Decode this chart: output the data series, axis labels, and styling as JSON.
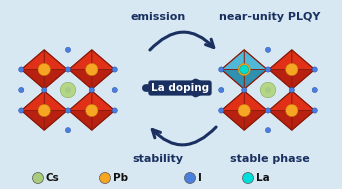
{
  "bg_color": "#d8e8f2",
  "title_emission": "emission",
  "title_plqy": "near-unity PLQY",
  "label_ladoping": "La doping",
  "label_stability": "stability",
  "label_stable": "stable phase",
  "legend_items": [
    {
      "label": "Cs",
      "color": "#a8cc7a"
    },
    {
      "label": "Pb",
      "color": "#f5a623"
    },
    {
      "label": "I",
      "color": "#4a7fdd"
    },
    {
      "label": "La",
      "color": "#00dddd"
    }
  ],
  "arrow_color": "#1a3060",
  "text_color": "#1a3060",
  "perovskite_red": "#e03018",
  "perovskite_red_dark": "#b82010",
  "perovskite_blue": "#50b8d8",
  "perovskite_blue_dark": "#3090b0",
  "cs_color": "#b0d47a",
  "pb_color": "#f5a623",
  "i_color": "#4a7fdd",
  "la_color": "#00ddcc",
  "crystal_stroke": "#8b1a0a",
  "ladoping_box_color": "#1a3060",
  "ladoping_text_color": "#ffffff"
}
